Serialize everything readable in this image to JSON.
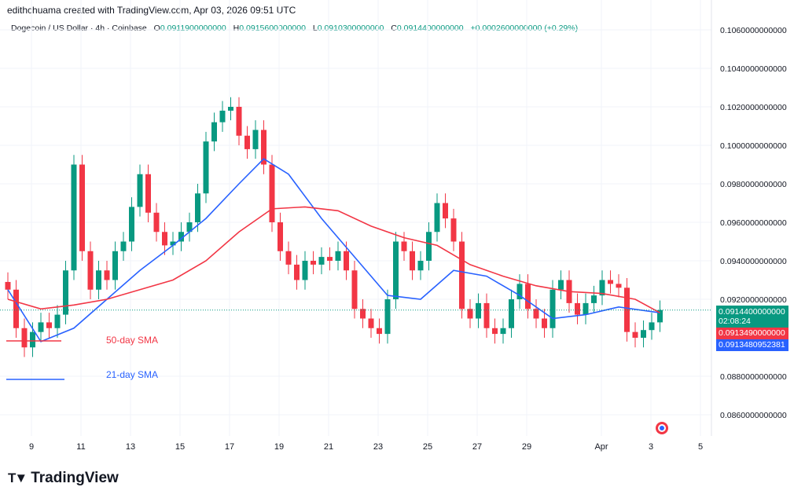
{
  "header": {
    "credit": "edithchuama created with TradingView.com, Apr 03, 2026 09:51 UTC"
  },
  "legend": {
    "symbol": "Dogecoin / US Dollar · 4h · Coinbase",
    "o_label": "O",
    "o": "0.0911900000000",
    "h_label": "H",
    "h": "0.0915600000000",
    "l_label": "L",
    "l": "0.0910300000000",
    "c_label": "C",
    "c": "0.0914400000000",
    "change": "+0.0002600000000 (+0.29%)"
  },
  "price_tags": {
    "last": "0.0914400000000",
    "countdown": "02:08:24",
    "sma50": "0.0913490000000",
    "sma21": "0.0913480952381"
  },
  "colors": {
    "up": "#089981",
    "down": "#f23645",
    "sma50": "#f23645",
    "sma21": "#2962ff"
  },
  "brand": "TradingView",
  "chart_data": {
    "type": "candlestick",
    "y_range": [
      0.085,
      0.1065
    ],
    "y_ticks": [
      "0.1060000000000",
      "0.1040000000000",
      "0.1020000000000",
      "0.1000000000000",
      "0.0980000000000",
      "0.0960000000000",
      "0.0940000000000",
      "0.0920000000000",
      "0.0880000000000",
      "0.0860000000000"
    ],
    "x_ticks": [
      "9",
      "11",
      "13",
      "15",
      "17",
      "19",
      "21",
      "23",
      "25",
      "27",
      "29",
      "Apr",
      "3",
      "5"
    ],
    "closes": [
      0.0925,
      0.0905,
      0.0895,
      0.0903,
      0.0908,
      0.0905,
      0.0912,
      0.0935,
      0.099,
      0.0945,
      0.0925,
      0.0935,
      0.093,
      0.0945,
      0.095,
      0.0968,
      0.0985,
      0.0965,
      0.0955,
      0.0948,
      0.095,
      0.0955,
      0.096,
      0.0975,
      0.1002,
      0.1012,
      0.1018,
      0.102,
      0.1005,
      0.0998,
      0.1008,
      0.099,
      0.096,
      0.0945,
      0.0938,
      0.093,
      0.094,
      0.0938,
      0.0942,
      0.094,
      0.0945,
      0.0935,
      0.0915,
      0.091,
      0.0905,
      0.0902,
      0.092,
      0.095,
      0.0945,
      0.0935,
      0.094,
      0.0955,
      0.097,
      0.0962,
      0.095,
      0.0915,
      0.091,
      0.0918,
      0.0905,
      0.0902,
      0.0905,
      0.092,
      0.0928,
      0.0915,
      0.091,
      0.0905,
      0.0925,
      0.093,
      0.0918,
      0.0912,
      0.0918,
      0.0922,
      0.093,
      0.0928,
      0.0926,
      0.0903,
      0.09,
      0.0904,
      0.0908,
      0.09144
    ],
    "series": [
      {
        "name": "21-day SMA",
        "points": [
          [
            0,
            0.0925
          ],
          [
            4,
            0.0898
          ],
          [
            8,
            0.0905
          ],
          [
            12,
            0.092
          ],
          [
            16,
            0.0935
          ],
          [
            20,
            0.0948
          ],
          [
            24,
            0.0962
          ],
          [
            28,
            0.098
          ],
          [
            31,
            0.0993
          ],
          [
            34,
            0.0985
          ],
          [
            38,
            0.0962
          ],
          [
            42,
            0.0942
          ],
          [
            46,
            0.0922
          ],
          [
            50,
            0.092
          ],
          [
            54,
            0.0935
          ],
          [
            58,
            0.0932
          ],
          [
            62,
            0.0922
          ],
          [
            66,
            0.091
          ],
          [
            70,
            0.0912
          ],
          [
            74,
            0.0916
          ],
          [
            79,
            0.0913
          ]
        ]
      },
      {
        "name": "50-day SMA",
        "points": [
          [
            0,
            0.092
          ],
          [
            4,
            0.0915
          ],
          [
            8,
            0.0917
          ],
          [
            12,
            0.092
          ],
          [
            16,
            0.0925
          ],
          [
            20,
            0.093
          ],
          [
            24,
            0.094
          ],
          [
            28,
            0.0955
          ],
          [
            32,
            0.0967
          ],
          [
            36,
            0.0968
          ],
          [
            40,
            0.0966
          ],
          [
            44,
            0.0958
          ],
          [
            48,
            0.0952
          ],
          [
            52,
            0.0948
          ],
          [
            56,
            0.0938
          ],
          [
            60,
            0.0932
          ],
          [
            64,
            0.0927
          ],
          [
            68,
            0.0924
          ],
          [
            72,
            0.0923
          ],
          [
            76,
            0.092
          ],
          [
            79,
            0.0913
          ]
        ]
      }
    ]
  }
}
